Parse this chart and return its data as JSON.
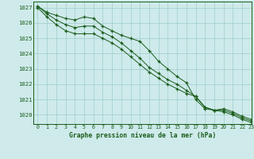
{
  "title": "Graphe pression niveau de la mer (hPa)",
  "bg_color": "#ceeaea",
  "grid_color": "#a0cccc",
  "line_color": "#1a5c1a",
  "marker": "+",
  "xlim": [
    -0.5,
    23
  ],
  "ylim": [
    1019.4,
    1027.4
  ],
  "yticks": [
    1020,
    1021,
    1022,
    1023,
    1024,
    1025,
    1026,
    1027
  ],
  "xticks": [
    0,
    1,
    2,
    3,
    4,
    5,
    6,
    7,
    8,
    9,
    10,
    11,
    12,
    13,
    14,
    15,
    16,
    17,
    18,
    19,
    20,
    21,
    22,
    23
  ],
  "series": [
    [
      1027.1,
      1026.7,
      1026.5,
      1026.3,
      1026.2,
      1026.4,
      1026.3,
      1025.8,
      1025.5,
      1025.2,
      1025.0,
      1024.8,
      1024.2,
      1023.5,
      1023.0,
      1022.5,
      1022.1,
      1021.0,
      1020.4,
      1020.3,
      1020.4,
      1020.2,
      1019.9,
      1019.7
    ],
    [
      1027.1,
      1026.6,
      1026.2,
      1025.9,
      1025.7,
      1025.8,
      1025.8,
      1025.4,
      1025.1,
      1024.7,
      1024.2,
      1023.7,
      1023.1,
      1022.7,
      1022.3,
      1022.0,
      1021.6,
      1021.2,
      1020.5,
      1020.3,
      1020.3,
      1020.1,
      1019.8,
      1019.6
    ],
    [
      1027.0,
      1026.4,
      1025.9,
      1025.5,
      1025.3,
      1025.3,
      1025.3,
      1025.0,
      1024.7,
      1024.3,
      1023.8,
      1023.3,
      1022.8,
      1022.4,
      1022.0,
      1021.7,
      1021.4,
      1021.2,
      1020.5,
      1020.3,
      1020.2,
      1020.0,
      1019.7,
      1019.5
    ]
  ]
}
